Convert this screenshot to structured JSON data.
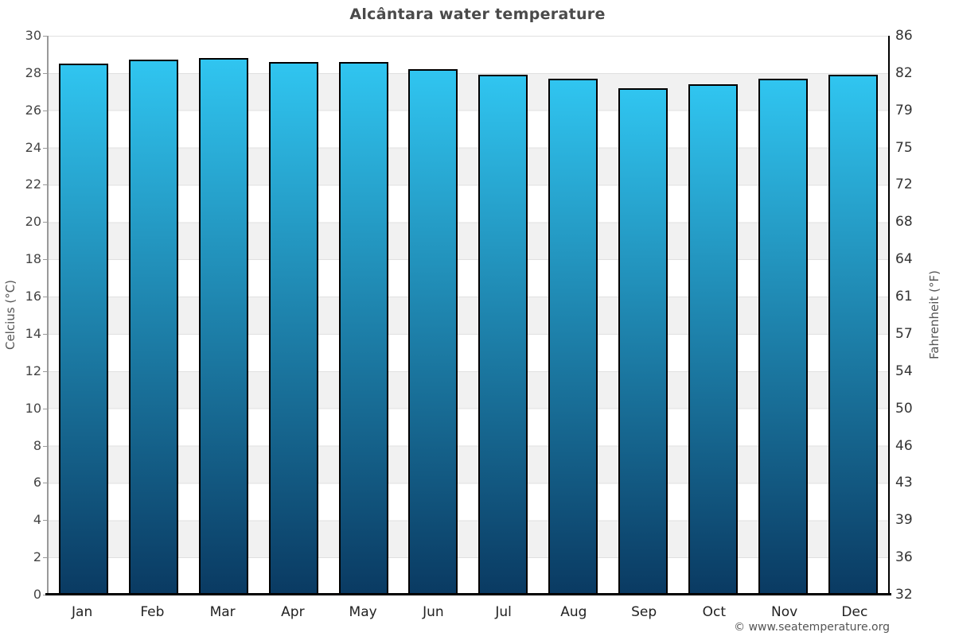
{
  "page": {
    "footer_credit": "© www.seatemperature.org"
  },
  "chart_data": {
    "type": "bar",
    "title": "Alcântara water temperature",
    "categories": [
      "Jan",
      "Feb",
      "Mar",
      "Apr",
      "May",
      "Jun",
      "Jul",
      "Aug",
      "Sep",
      "Oct",
      "Nov",
      "Dec"
    ],
    "values": [
      28.5,
      28.7,
      28.8,
      28.6,
      28.6,
      28.2,
      27.9,
      27.7,
      27.2,
      27.4,
      27.7,
      27.9
    ],
    "unit": "°C",
    "ylabel_left": "Celcius (°C)",
    "ylabel_right": "Fahrenheit (°F)",
    "ylim": [
      0,
      30
    ],
    "ytick_step": 2,
    "yticks_left": [
      30,
      28,
      26,
      24,
      22,
      20,
      18,
      16,
      14,
      12,
      10,
      8,
      6,
      4,
      2,
      0
    ],
    "yticks_right": [
      86,
      82,
      79,
      75,
      72,
      68,
      64,
      61,
      57,
      54,
      50,
      46,
      43,
      39,
      36,
      32
    ],
    "grid": "alternating-horizontal-bands",
    "legend": "none",
    "colors": {
      "bar_gradient_top": "#30c5f0",
      "bar_gradient_bottom": "#0a3a62",
      "bar_border": "#000000",
      "band_light": "#ffffff",
      "band_dark": "#f1f1f1",
      "gridline": "#e0e0e0",
      "axis_left": "#999999",
      "axis_bottom": "#000000",
      "title": "#4a4a4a",
      "tick_label_left": "#444444",
      "tick_label_right": "#333333",
      "month_label": "#222222",
      "footer": "#555555"
    }
  }
}
